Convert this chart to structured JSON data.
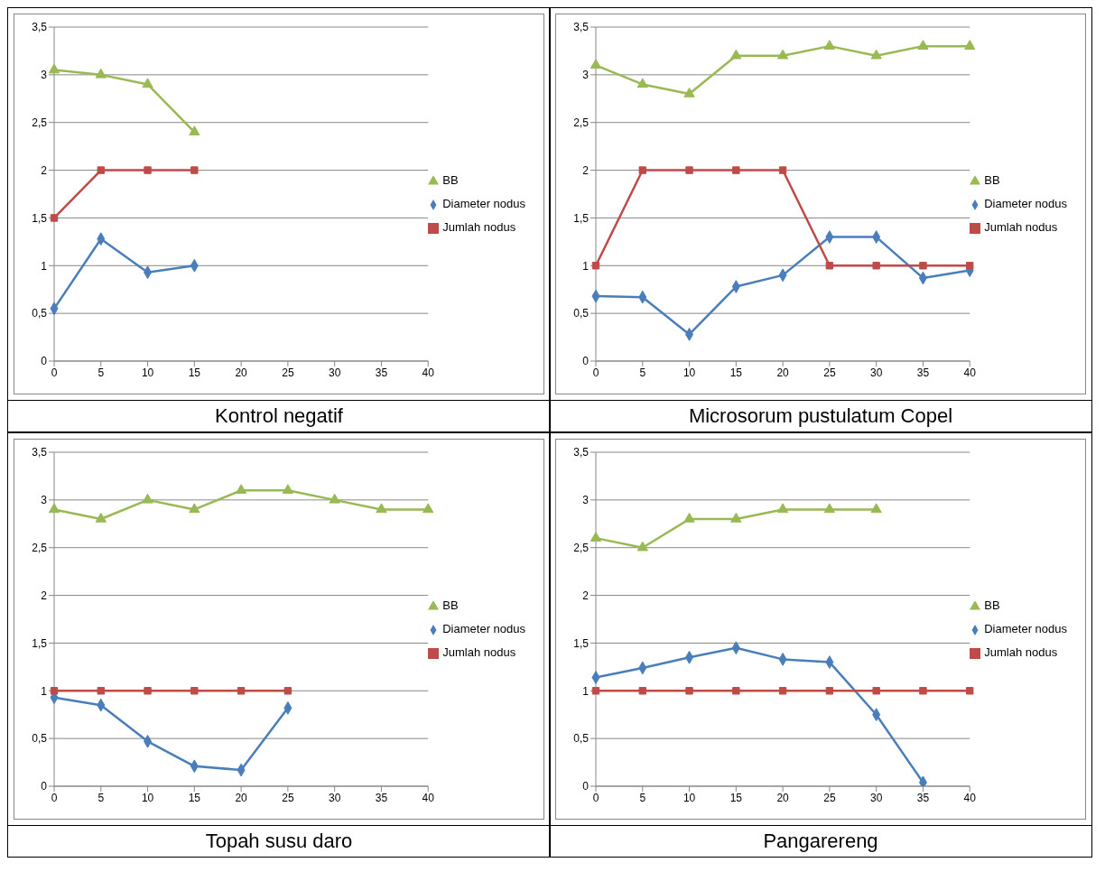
{
  "chart_data": [
    {
      "type": "line",
      "title": "Kontrol negatif",
      "categories": [
        "0",
        "5",
        "10",
        "15",
        "20",
        "25",
        "30",
        "35",
        "40"
      ],
      "ylim": [
        0,
        3.5
      ],
      "yticks": [
        0,
        {
          "value": 0.5,
          "label": "0,5"
        },
        1,
        {
          "value": 1.5,
          "label": "1,5"
        },
        2,
        {
          "value": 2.5,
          "label": "2,5"
        },
        3,
        {
          "value": 3.5,
          "label": "3,5"
        }
      ],
      "grid": "y",
      "legend": "right",
      "series": [
        {
          "name": "Diameter nodus",
          "color": "#4a7ebb",
          "marker": "diamond",
          "values": [
            0.55,
            1.28,
            0.93,
            1.0,
            null,
            null,
            null,
            null,
            null
          ]
        },
        {
          "name": "Jumlah nodus",
          "color": "#be4b48",
          "marker": "square",
          "values": [
            1.5,
            2,
            2,
            2,
            null,
            null,
            null,
            null,
            null
          ]
        },
        {
          "name": "BB",
          "color": "#98b954",
          "marker": "triangle",
          "values": [
            3.05,
            3.0,
            2.9,
            2.4,
            null,
            null,
            null,
            null,
            null
          ]
        }
      ]
    },
    {
      "type": "line",
      "title": "Microsorum pustulatum Copel",
      "categories": [
        "0",
        "5",
        "10",
        "15",
        "20",
        "25",
        "30",
        "35",
        "40"
      ],
      "ylim": [
        0,
        3.5
      ],
      "yticks": [
        0,
        {
          "value": 0.5,
          "label": "0,5"
        },
        1,
        {
          "value": 1.5,
          "label": "1,5"
        },
        2,
        {
          "value": 2.5,
          "label": "2,5"
        },
        3,
        {
          "value": 3.5,
          "label": "3,5"
        }
      ],
      "grid": "y",
      "legend": "right",
      "series": [
        {
          "name": "Diameter nodus",
          "color": "#4a7ebb",
          "marker": "diamond",
          "values": [
            0.68,
            0.67,
            0.28,
            0.78,
            0.9,
            1.3,
            1.3,
            0.87,
            0.95
          ]
        },
        {
          "name": "Jumlah nodus",
          "color": "#be4b48",
          "marker": "square",
          "values": [
            1,
            2,
            2,
            2,
            2,
            1,
            1,
            1,
            1
          ]
        },
        {
          "name": "BB",
          "color": "#98b954",
          "marker": "triangle",
          "values": [
            3.1,
            2.9,
            2.8,
            3.2,
            3.2,
            3.3,
            3.2,
            3.3,
            3.3
          ]
        }
      ]
    },
    {
      "type": "line",
      "title": "Topah susu daro",
      "categories": [
        "0",
        "5",
        "10",
        "15",
        "20",
        "25",
        "30",
        "35",
        "40"
      ],
      "ylim": [
        0,
        3.5
      ],
      "yticks": [
        0,
        {
          "value": 0.5,
          "label": "0,5"
        },
        1,
        {
          "value": 1.5,
          "label": "1,5"
        },
        2,
        {
          "value": 2.5,
          "label": "2,5"
        },
        3,
        {
          "value": 3.5,
          "label": "3,5"
        }
      ],
      "grid": "y",
      "legend": "right",
      "series": [
        {
          "name": "Diameter nodus",
          "color": "#4a7ebb",
          "marker": "diamond",
          "values": [
            0.93,
            0.85,
            0.47,
            0.21,
            0.17,
            0.82,
            null,
            null,
            null
          ]
        },
        {
          "name": "Jumlah nodus",
          "color": "#be4b48",
          "marker": "square",
          "values": [
            1,
            1,
            1,
            1,
            1,
            1,
            null,
            null,
            null
          ]
        },
        {
          "name": "BB",
          "color": "#98b954",
          "marker": "triangle",
          "values": [
            2.9,
            2.8,
            3.0,
            2.9,
            3.1,
            3.1,
            3.0,
            2.9,
            2.9
          ]
        }
      ]
    },
    {
      "type": "line",
      "title": "Pangarereng",
      "categories": [
        "0",
        "5",
        "10",
        "15",
        "20",
        "25",
        "30",
        "35",
        "40"
      ],
      "ylim": [
        0,
        3.5
      ],
      "yticks": [
        0,
        {
          "value": 0.5,
          "label": "0,5"
        },
        1,
        {
          "value": 1.5,
          "label": "1,5"
        },
        2,
        {
          "value": 2.5,
          "label": "2,5"
        },
        3,
        {
          "value": 3.5,
          "label": "3,5"
        }
      ],
      "grid": "y",
      "legend": "right",
      "series": [
        {
          "name": "Diameter nodus",
          "color": "#4a7ebb",
          "marker": "diamond",
          "values": [
            1.14,
            1.24,
            1.35,
            1.45,
            1.33,
            1.3,
            0.75,
            0.04,
            null
          ]
        },
        {
          "name": "Jumlah nodus",
          "color": "#be4b48",
          "marker": "square",
          "values": [
            1,
            1,
            1,
            1,
            1,
            1,
            1,
            1,
            1
          ]
        },
        {
          "name": "BB",
          "color": "#98b954",
          "marker": "triangle",
          "values": [
            2.6,
            2.5,
            2.8,
            2.8,
            2.9,
            2.9,
            2.9,
            null,
            null
          ]
        }
      ]
    }
  ]
}
